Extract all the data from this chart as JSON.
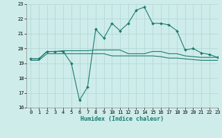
{
  "x": [
    0,
    1,
    2,
    3,
    4,
    5,
    6,
    7,
    8,
    9,
    10,
    11,
    12,
    13,
    14,
    15,
    16,
    17,
    18,
    19,
    20,
    21,
    22,
    23
  ],
  "y_main": [
    19.3,
    19.3,
    19.8,
    19.8,
    19.8,
    19.0,
    16.5,
    17.4,
    21.3,
    20.7,
    21.7,
    21.2,
    21.7,
    22.6,
    22.8,
    21.7,
    21.7,
    21.6,
    21.2,
    19.9,
    20.0,
    19.7,
    19.6,
    19.4
  ],
  "y_flat1": [
    19.3,
    19.3,
    19.8,
    19.8,
    19.85,
    19.85,
    19.85,
    19.85,
    19.9,
    19.9,
    19.9,
    19.9,
    19.65,
    19.65,
    19.65,
    19.8,
    19.8,
    19.65,
    19.65,
    19.5,
    19.45,
    19.4,
    19.4,
    19.4
  ],
  "y_flat2": [
    19.2,
    19.2,
    19.65,
    19.65,
    19.65,
    19.65,
    19.65,
    19.65,
    19.65,
    19.65,
    19.5,
    19.5,
    19.5,
    19.5,
    19.5,
    19.5,
    19.45,
    19.35,
    19.35,
    19.3,
    19.25,
    19.2,
    19.2,
    19.2
  ],
  "color": "#1a7a6e",
  "bg_color": "#ceecea",
  "grid_color": "#aed6d2",
  "ylim": [
    16,
    23
  ],
  "xlim": [
    -0.5,
    23
  ],
  "xlabel": "Humidex (Indice chaleur)",
  "yticks": [
    16,
    17,
    18,
    19,
    20,
    21,
    22,
    23
  ],
  "xticks": [
    0,
    1,
    2,
    3,
    4,
    5,
    6,
    7,
    8,
    9,
    10,
    11,
    12,
    13,
    14,
    15,
    16,
    17,
    18,
    19,
    20,
    21,
    22,
    23
  ],
  "marker_size": 2.0,
  "linewidth": 0.8,
  "tick_fontsize": 5.0,
  "xlabel_fontsize": 6.0
}
